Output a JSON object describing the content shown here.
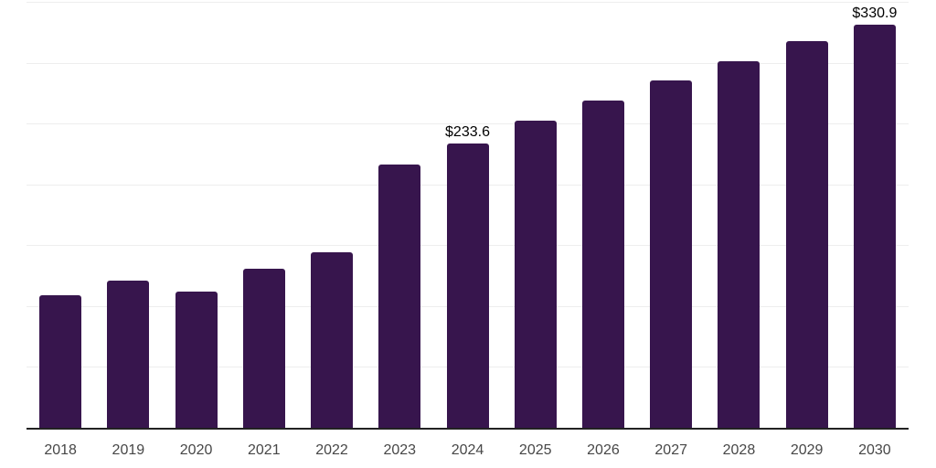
{
  "chart_data": {
    "type": "bar",
    "title": "",
    "xlabel": "",
    "ylabel": "",
    "categories": [
      "2018",
      "2019",
      "2020",
      "2021",
      "2022",
      "2023",
      "2024",
      "2025",
      "2026",
      "2027",
      "2028",
      "2029",
      "2030"
    ],
    "values": [
      108.6,
      120.8,
      111.8,
      130.8,
      144.3,
      216.4,
      233.6,
      252.5,
      269.2,
      285.5,
      301.2,
      317.4,
      330.9
    ],
    "data_labels": [
      {
        "category": "2024",
        "text": "$233.6"
      },
      {
        "category": "2030",
        "text": "$330.9"
      }
    ],
    "ylim": [
      0,
      350
    ],
    "grid_step": 50,
    "grid": "horizontal-only",
    "legend": "none",
    "colors": {
      "bar": "#37154D",
      "grid": "#EEEEEE",
      "axis": "#222222",
      "tick_label": "#474747",
      "data_label": "#000000",
      "background": "#FFFFFF"
    }
  }
}
